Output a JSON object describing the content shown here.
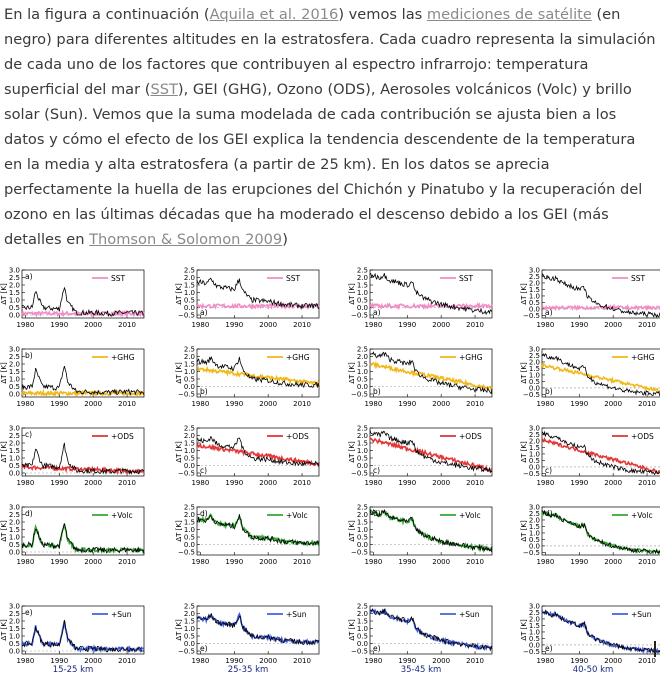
{
  "paragraph": {
    "p1": "En la figura a continuación (",
    "link_aquila": "Aquila et al. 2016",
    "p2": ") vemos las ",
    "link_mediciones": "mediciones de satélite",
    "p3": "  (en negro) para diferentes altitudes en la estratosfera. Cada cuadro representa la simulación de cada uno de los factores que contribuyen al espectro infrarrojo: temperatura superficial del mar (",
    "link_sst": "SST",
    "p4": "), GEI (GHG), Ozono (ODS), Aerosoles volcánicos (Volc) y brillo solar (Sun). Vemos que la suma modelada de cada contribución se ajusta bien a los datos y cómo el efecto de los GEI explica la tendencia descendente de la temperatura en la media y alta estratosfera (a partir de 25 km). En los datos se aprecia perfectamente la huella de las erupciones del Chichón y Pinatubo y la recuperación del ozono en las últimas décadas que ha moderado el descenso debido a los GEI (más detalles en ",
    "link_thomson": "Thomson & Solomon 2009",
    "p5": ")"
  },
  "colors": {
    "text": "#3a3a3a",
    "link": "#8a8a8a",
    "observed": "#000000",
    "SST": "#f080c0",
    "+GHG": "#f0b000",
    "+ODS": "#e02020",
    "+Volc": "#20a020",
    "+Sun": "#3050e0"
  },
  "chart_data": {
    "type": "line",
    "y_axis_label": "ΔT [K]",
    "x_ticks": [
      "1980",
      "1990",
      "2000",
      "2010"
    ],
    "rows": [
      {
        "panel_letter": "a)",
        "series": "SST"
      },
      {
        "panel_letter": "b)",
        "series": "+GHG"
      },
      {
        "panel_letter": "c)",
        "series": "+ODS"
      },
      {
        "panel_letter": "d)",
        "series": "+Volc"
      },
      {
        "panel_letter": "e)",
        "series": "+Sun"
      }
    ],
    "columns": [
      {
        "label": "15-25 km",
        "ylim": [
          -0.2,
          3.0
        ],
        "y_ticks": [
          "3.0",
          "2.5",
          "2.0",
          "1.5",
          "1.0",
          "0.5",
          "0.0"
        ]
      },
      {
        "label": "25-35 km",
        "ylim": [
          -0.7,
          2.5
        ],
        "y_ticks": [
          "2.5",
          "2.0",
          "1.5",
          "1.0",
          "0.5",
          "0.0",
          "−0.5"
        ]
      },
      {
        "label": "35-45 km",
        "ylim": [
          -0.7,
          2.5
        ],
        "y_ticks": [
          "2.5",
          "2.0",
          "1.5",
          "1.0",
          "0.5",
          "0.0",
          "−0.5"
        ]
      },
      {
        "label": "40-50 km",
        "ylim": [
          -0.7,
          3.0
        ],
        "y_ticks": [
          "3.0",
          "2.5",
          "2.0",
          "1.5",
          "1.0",
          "0.5",
          "0.0",
          "−0.5"
        ]
      }
    ],
    "observed_anomaly_K": {
      "years": [
        1979,
        1982,
        1983,
        1985,
        1990,
        1991.5,
        1992.5,
        1995,
        2000,
        2005,
        2010,
        2015
      ],
      "15-25 km": [
        0.45,
        0.5,
        1.6,
        0.5,
        0.4,
        1.9,
        0.8,
        0.15,
        0.15,
        0.1,
        0.15,
        0.1
      ],
      "25-35 km": [
        1.7,
        1.6,
        1.9,
        1.4,
        1.2,
        1.9,
        1.1,
        0.5,
        0.4,
        0.2,
        0.1,
        0.1
      ],
      "35-45 km": [
        2.2,
        2.0,
        2.2,
        1.8,
        1.5,
        1.7,
        1.0,
        0.6,
        0.2,
        0.0,
        -0.2,
        -0.3
      ],
      "40-50 km": [
        2.6,
        2.3,
        2.4,
        2.0,
        1.5,
        1.6,
        0.9,
        0.4,
        0.0,
        -0.3,
        -0.4,
        -0.5
      ]
    }
  }
}
